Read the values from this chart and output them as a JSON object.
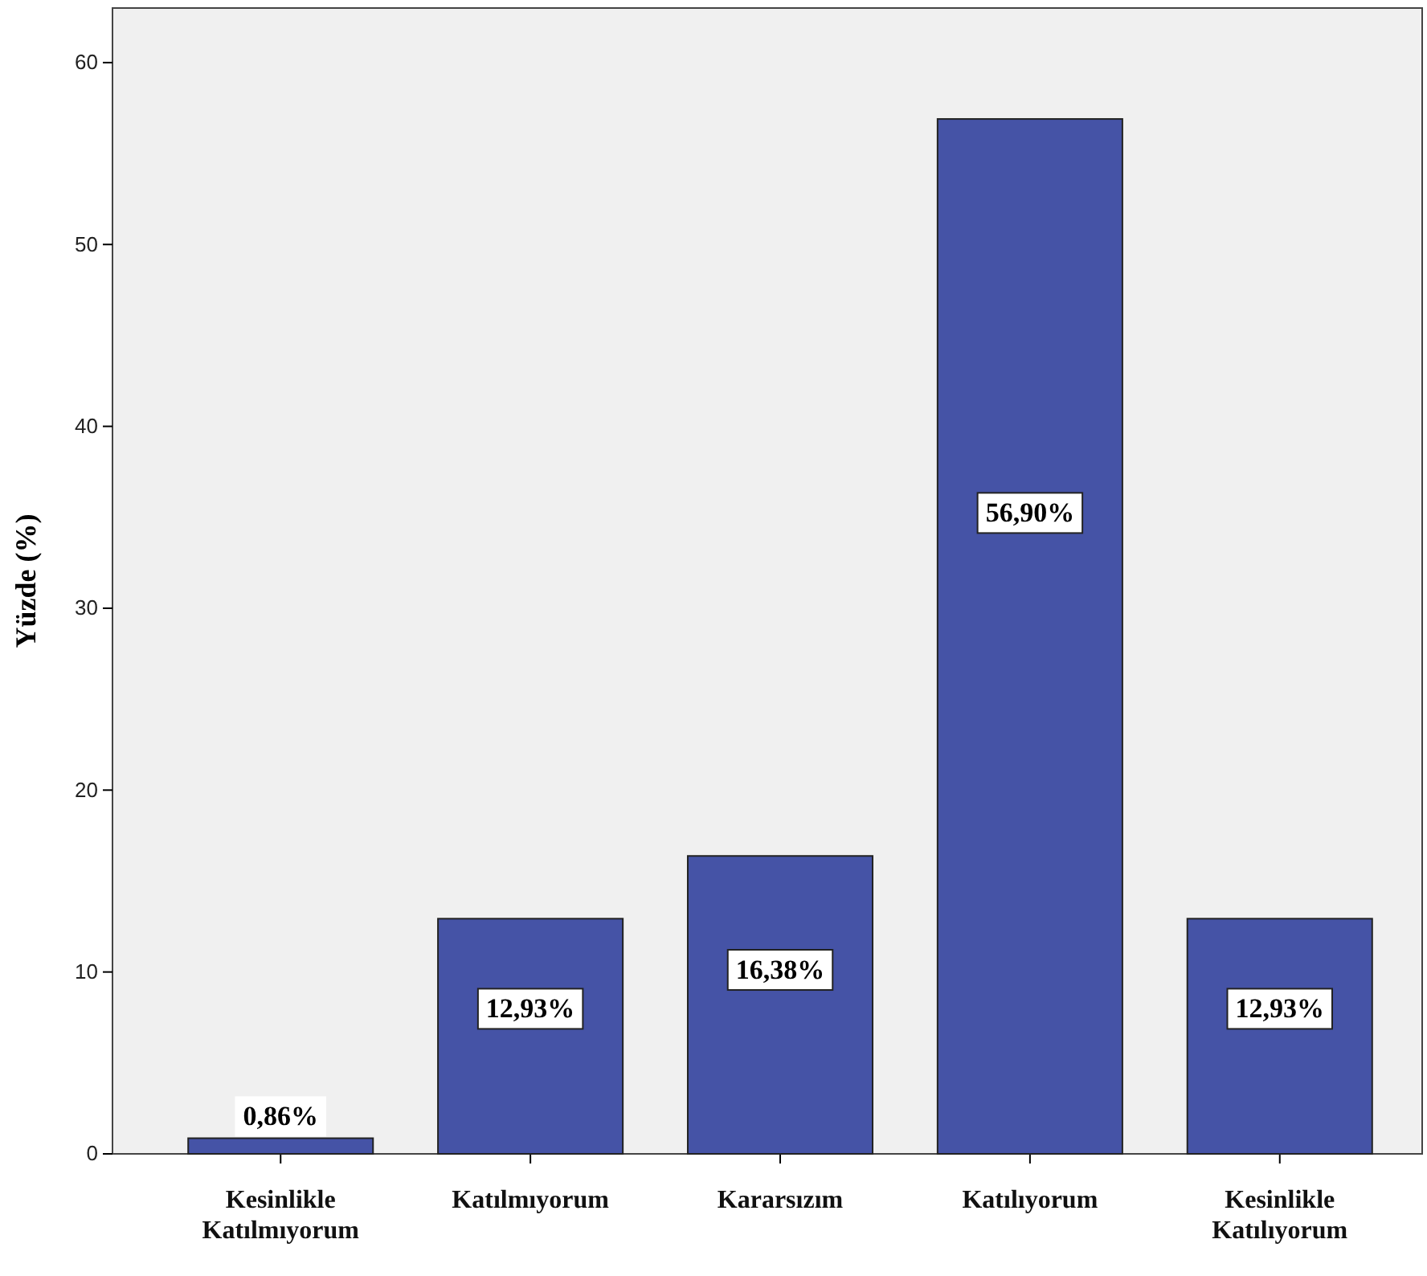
{
  "chart_data": {
    "type": "bar",
    "ylabel": "Yüzde (%)",
    "categories": [
      "Kesinlikle Katılmıyorum",
      "Katılmıyorum",
      "Kararsızım",
      "Katılıyorum",
      "Kesinlikle Katılıyorum"
    ],
    "values": [
      0.86,
      12.93,
      16.38,
      56.9,
      12.93
    ],
    "value_labels": [
      "0,86%",
      "12,93%",
      "16,38%",
      "56,90%",
      "12,93%"
    ],
    "color": "#4553a6",
    "ylim": [
      0,
      63
    ],
    "yticks": [
      0,
      10,
      20,
      30,
      40,
      50,
      60
    ],
    "grid": false
  }
}
